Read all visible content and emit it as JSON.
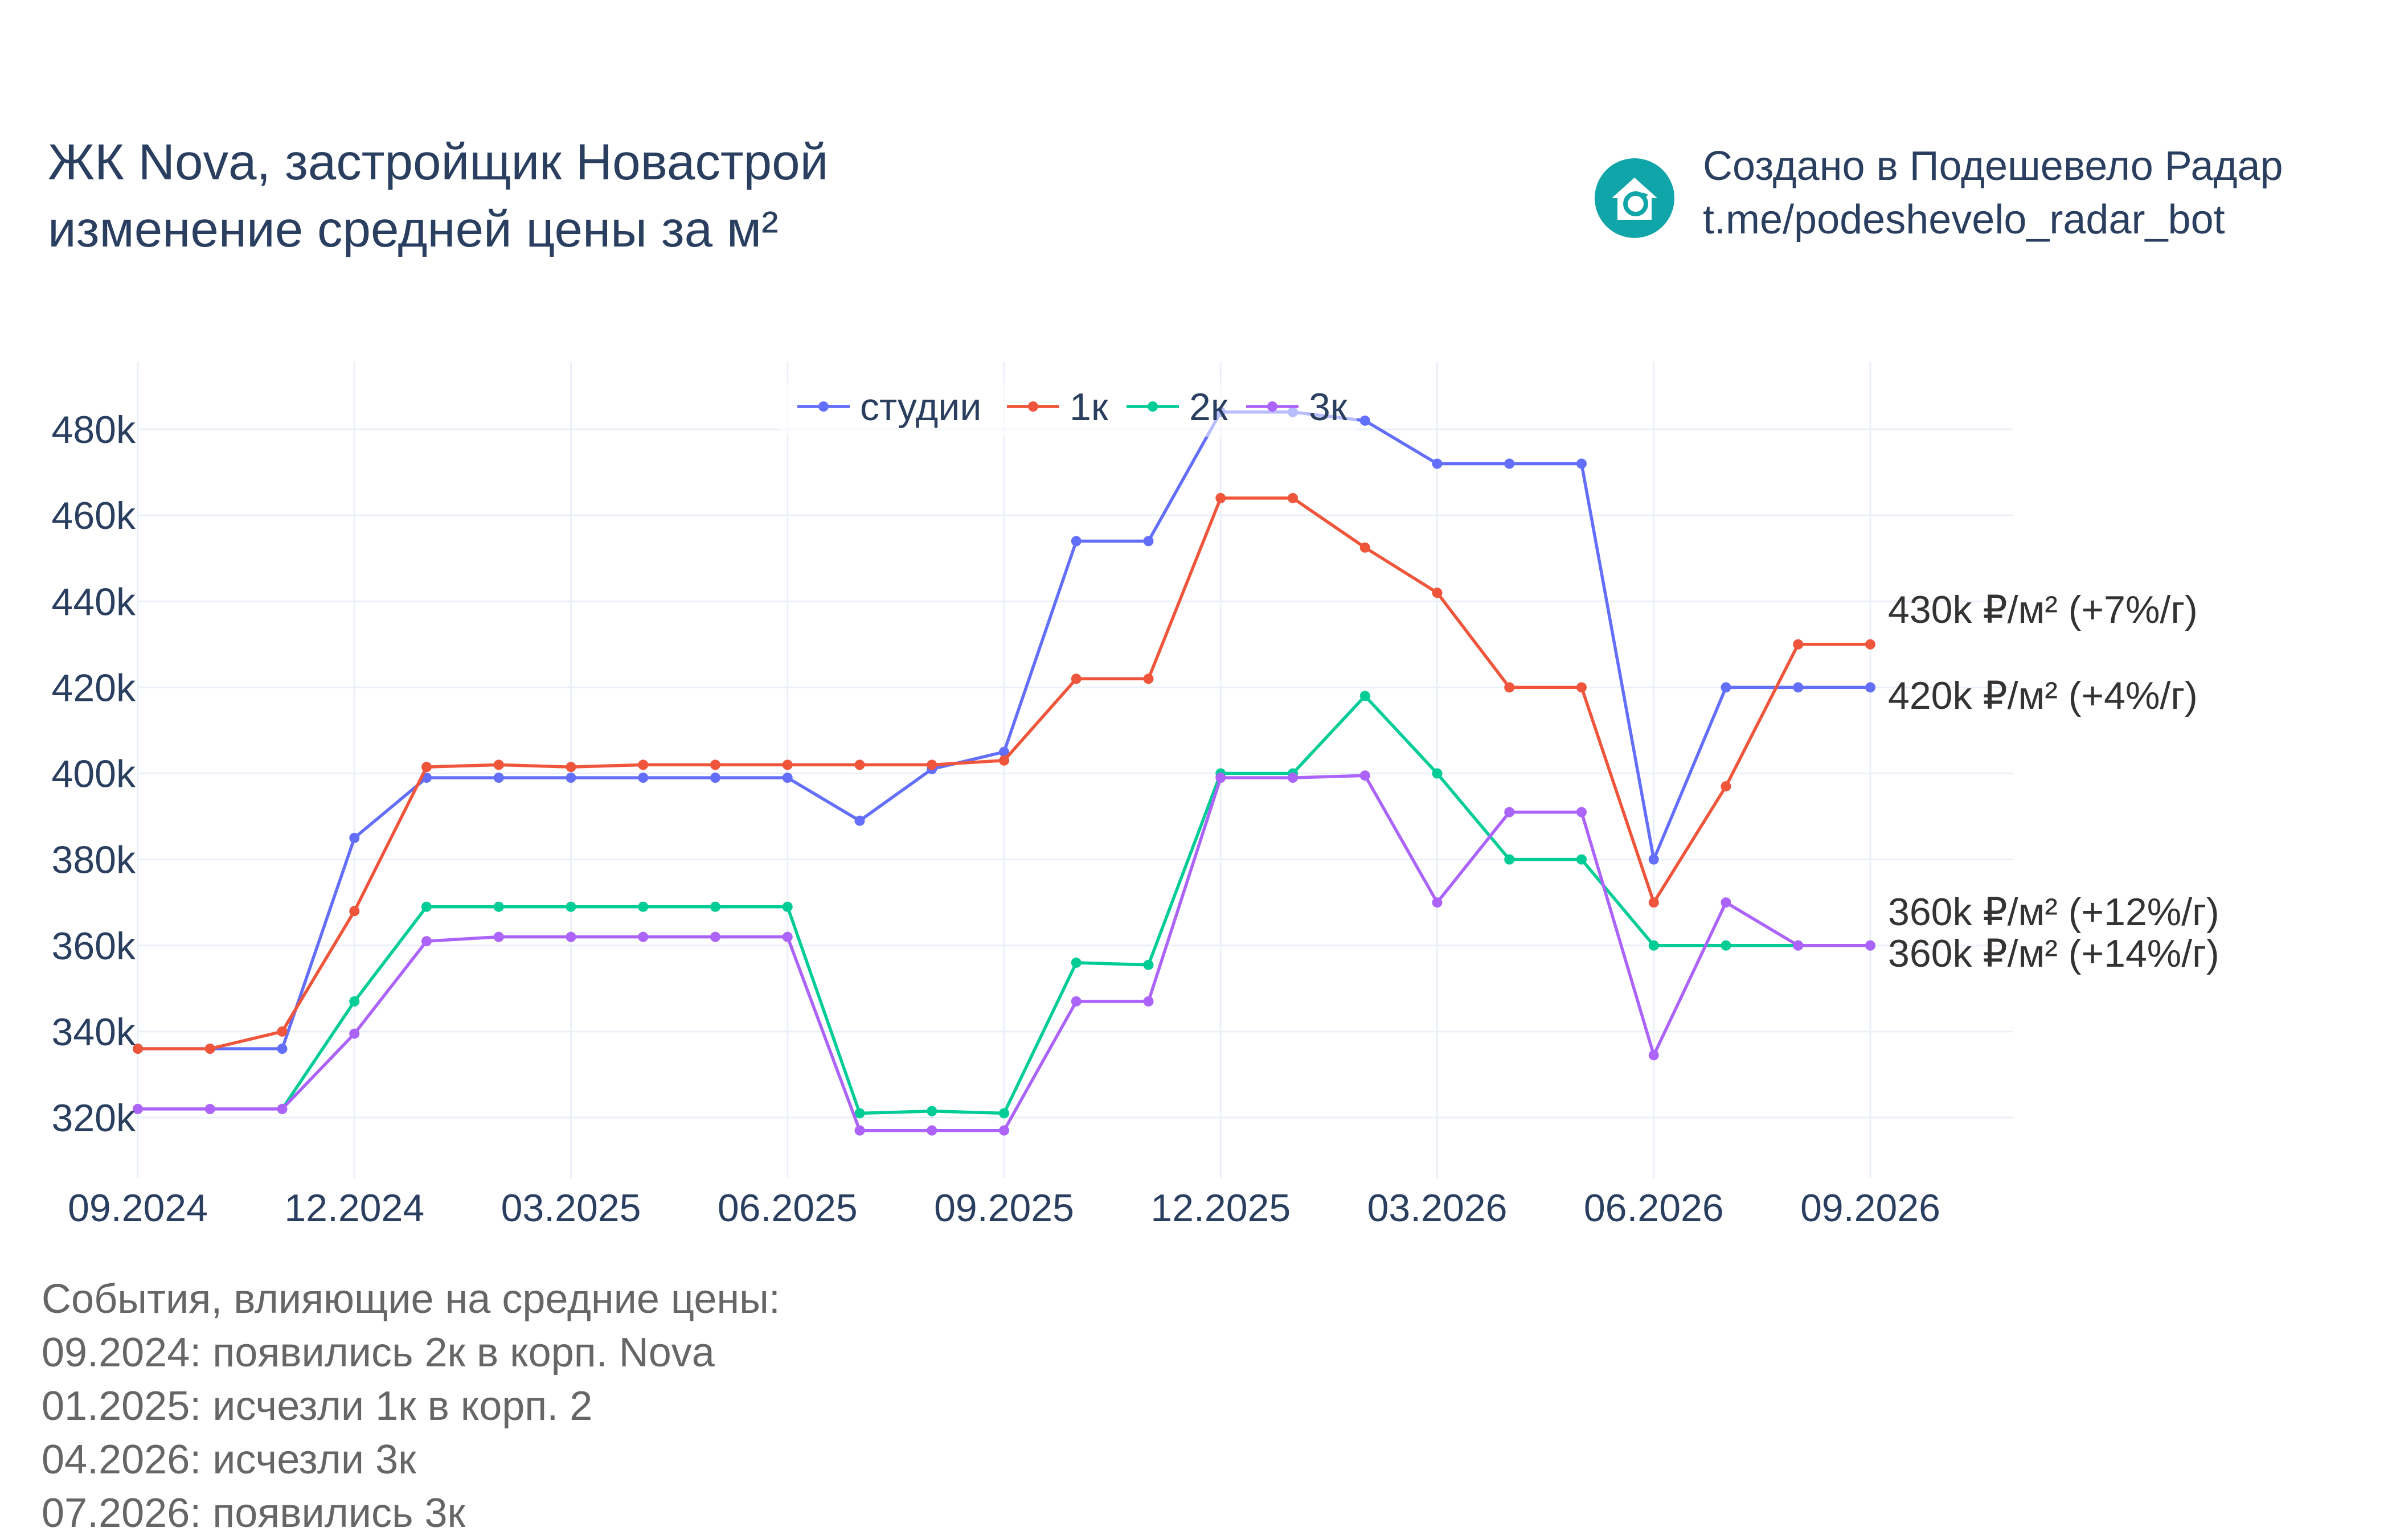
{
  "header": {
    "title_line1": "ЖК Nova, застройщик Новастрой",
    "title_line2": "изменение средней цены за м²"
  },
  "brand": {
    "line1": "Создано в Подешевело Радар",
    "line2": "t.me/podeshevelo_radar_bot",
    "logo_icon": "house-refresh-icon",
    "logo_color": "#10a5a8"
  },
  "events": {
    "heading": "События, влияющие на средние цены:",
    "items": [
      "09.2024: появились 2к в корп. Nova",
      "01.2025: исчезли 1к в корп. 2",
      "04.2026: исчезли 3к",
      "07.2026: появились 3к"
    ]
  },
  "chart_data": {
    "type": "line",
    "x": [
      "09.2024",
      "10.2024",
      "11.2024",
      "12.2024",
      "01.2025",
      "02.2025",
      "03.2025",
      "04.2025",
      "05.2025",
      "06.2025",
      "07.2025",
      "08.2025",
      "09.2025",
      "10.2025",
      "11.2025",
      "12.2025",
      "01.2026",
      "02.2026",
      "03.2026",
      "04.2026",
      "05.2026",
      "06.2026",
      "07.2026",
      "08.2026",
      "09.2026"
    ],
    "x_tick_labels": [
      "09.2024",
      "12.2024",
      "03.2025",
      "06.2025",
      "09.2025",
      "12.2025",
      "03.2026",
      "06.2026",
      "09.2026"
    ],
    "y_tick_labels": [
      "320k",
      "340k",
      "360k",
      "380k",
      "400k",
      "420k",
      "440k",
      "460k",
      "480k"
    ],
    "y_ticks": [
      320000,
      340000,
      360000,
      380000,
      400000,
      420000,
      440000,
      460000,
      480000
    ],
    "ylim": [
      306000,
      490000
    ],
    "grid": true,
    "legend_position": "top-center",
    "series": [
      {
        "name": "студии",
        "color": "#636efa",
        "values": [
          336000,
          336000,
          336000,
          385000,
          399000,
          399000,
          399000,
          399000,
          399000,
          399000,
          389000,
          401000,
          405000,
          454000,
          454000,
          484000,
          484000,
          482000,
          472000,
          472000,
          472000,
          380000,
          420000,
          420000,
          420000
        ]
      },
      {
        "name": "1к",
        "color": "#ef553b",
        "values": [
          336000,
          336000,
          340000,
          368000,
          401500,
          402000,
          401500,
          402000,
          402000,
          402000,
          402000,
          402000,
          403000,
          422000,
          422000,
          464000,
          464000,
          452500,
          442000,
          420000,
          420000,
          370000,
          397000,
          430000,
          430000
        ]
      },
      {
        "name": "2к",
        "color": "#00cc96",
        "values": [
          null,
          null,
          322000,
          347000,
          369000,
          369000,
          369000,
          369000,
          369000,
          369000,
          321000,
          321500,
          321000,
          356000,
          355500,
          400000,
          400000,
          418000,
          400000,
          380000,
          380000,
          360000,
          360000,
          360000,
          360000
        ]
      },
      {
        "name": "3к",
        "color": "#ab63fa",
        "values": [
          322000,
          322000,
          322000,
          339500,
          361000,
          362000,
          362000,
          362000,
          362000,
          362000,
          317000,
          317000,
          317000,
          347000,
          347000,
          399000,
          399000,
          399500,
          370000,
          391000,
          391000,
          334500,
          370000,
          360000,
          360000
        ]
      }
    ],
    "end_labels": [
      {
        "text": "430k ₽/м² (+7%/г)",
        "value": 430000,
        "color": "#333333"
      },
      {
        "text": "420k ₽/м² (+4%/г)",
        "value": 420000,
        "color": "#333333"
      },
      {
        "text": "360k ₽/м² (+12%/г)",
        "value": 360000,
        "color": "#333333"
      },
      {
        "text": "360k ₽/м² (+14%/г)",
        "value": 360000,
        "color": "#333333"
      }
    ]
  }
}
